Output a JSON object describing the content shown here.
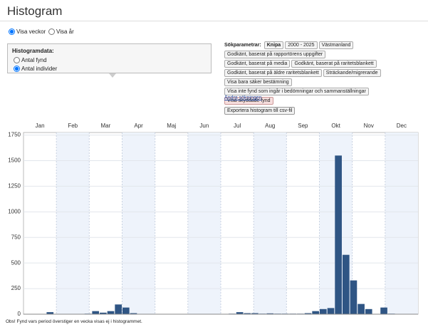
{
  "header": {
    "title": "Histogram"
  },
  "period_options": [
    "Visa veckor",
    "Visa år"
  ],
  "period_selected": 0,
  "histogram_data": {
    "label": "Histogramdata:",
    "options": [
      "Antal fynd",
      "Antal individer"
    ],
    "selected": 1
  },
  "search": {
    "label": "Sökparametrar:",
    "tags": [
      {
        "text": "Knipa",
        "bold": true
      },
      {
        "text": "2000 - 2025"
      },
      {
        "text": "Västmanland"
      },
      {
        "text": "Godkänt, baserat på rapportörens uppgifter"
      },
      {
        "text": "Godkänt, baserat på media"
      },
      {
        "text": "Godkänt, baserat på raritetsblankett"
      },
      {
        "text": "Godkänt, baserat på äldre raritetsblankett"
      },
      {
        "text": "Sträckande/migrerande"
      },
      {
        "text": "Visa bara säker bestämning"
      },
      {
        "text": "Visa inte fynd som ingår i bedömningar och sammanställningar"
      },
      {
        "text": "Visa skyddade fynd",
        "highlighted": true
      }
    ],
    "change_link": "Ändra sökningen",
    "export_button": "Exportera histogram till csv-fil"
  },
  "footnote": "Obs! Fynd vars period överstiger en vecka visas ej i histogrammet.",
  "chart_data": {
    "type": "bar",
    "categories": [
      null,
      null,
      null,
      null,
      null,
      null,
      null,
      null,
      null,
      null,
      null,
      null,
      null,
      null,
      null,
      null,
      null,
      null,
      null,
      null,
      null,
      null,
      null,
      null,
      null,
      null,
      null,
      null,
      null,
      null,
      null,
      null,
      null,
      null,
      null,
      null,
      null,
      null,
      null,
      null,
      null,
      null,
      null,
      null,
      null,
      null,
      null,
      null,
      null,
      null,
      null,
      null
    ],
    "values": [
      0,
      0,
      0,
      20,
      0,
      0,
      0,
      0,
      5,
      30,
      15,
      30,
      95,
      65,
      10,
      0,
      0,
      0,
      0,
      0,
      0,
      0,
      0,
      0,
      0,
      0,
      0,
      5,
      20,
      10,
      10,
      5,
      8,
      5,
      5,
      5,
      5,
      10,
      30,
      50,
      60,
      1550,
      580,
      330,
      100,
      50,
      0,
      65,
      5,
      0,
      0,
      0
    ],
    "color": "#2f5584",
    "ylim": [
      0,
      1775
    ],
    "yticks": [
      0,
      250,
      500,
      750,
      1000,
      1250,
      1500,
      1750
    ],
    "xticks": [
      {
        "value": 2.17,
        "label": "Jan"
      },
      {
        "value": 6.5,
        "label": "Feb"
      },
      {
        "value": 10.83,
        "label": "Mar"
      },
      {
        "value": 15.17,
        "label": "Apr"
      },
      {
        "value": 19.5,
        "label": "Maj"
      },
      {
        "value": 23.83,
        "label": "Jun"
      },
      {
        "value": 28.17,
        "label": "Jul"
      },
      {
        "value": 32.5,
        "label": "Aug"
      },
      {
        "value": 36.83,
        "label": "Sep"
      },
      {
        "value": 41.17,
        "label": "Okt"
      },
      {
        "value": 45.5,
        "label": "Nov"
      },
      {
        "value": 49.83,
        "label": "Dec"
      }
    ],
    "grid": true
  }
}
